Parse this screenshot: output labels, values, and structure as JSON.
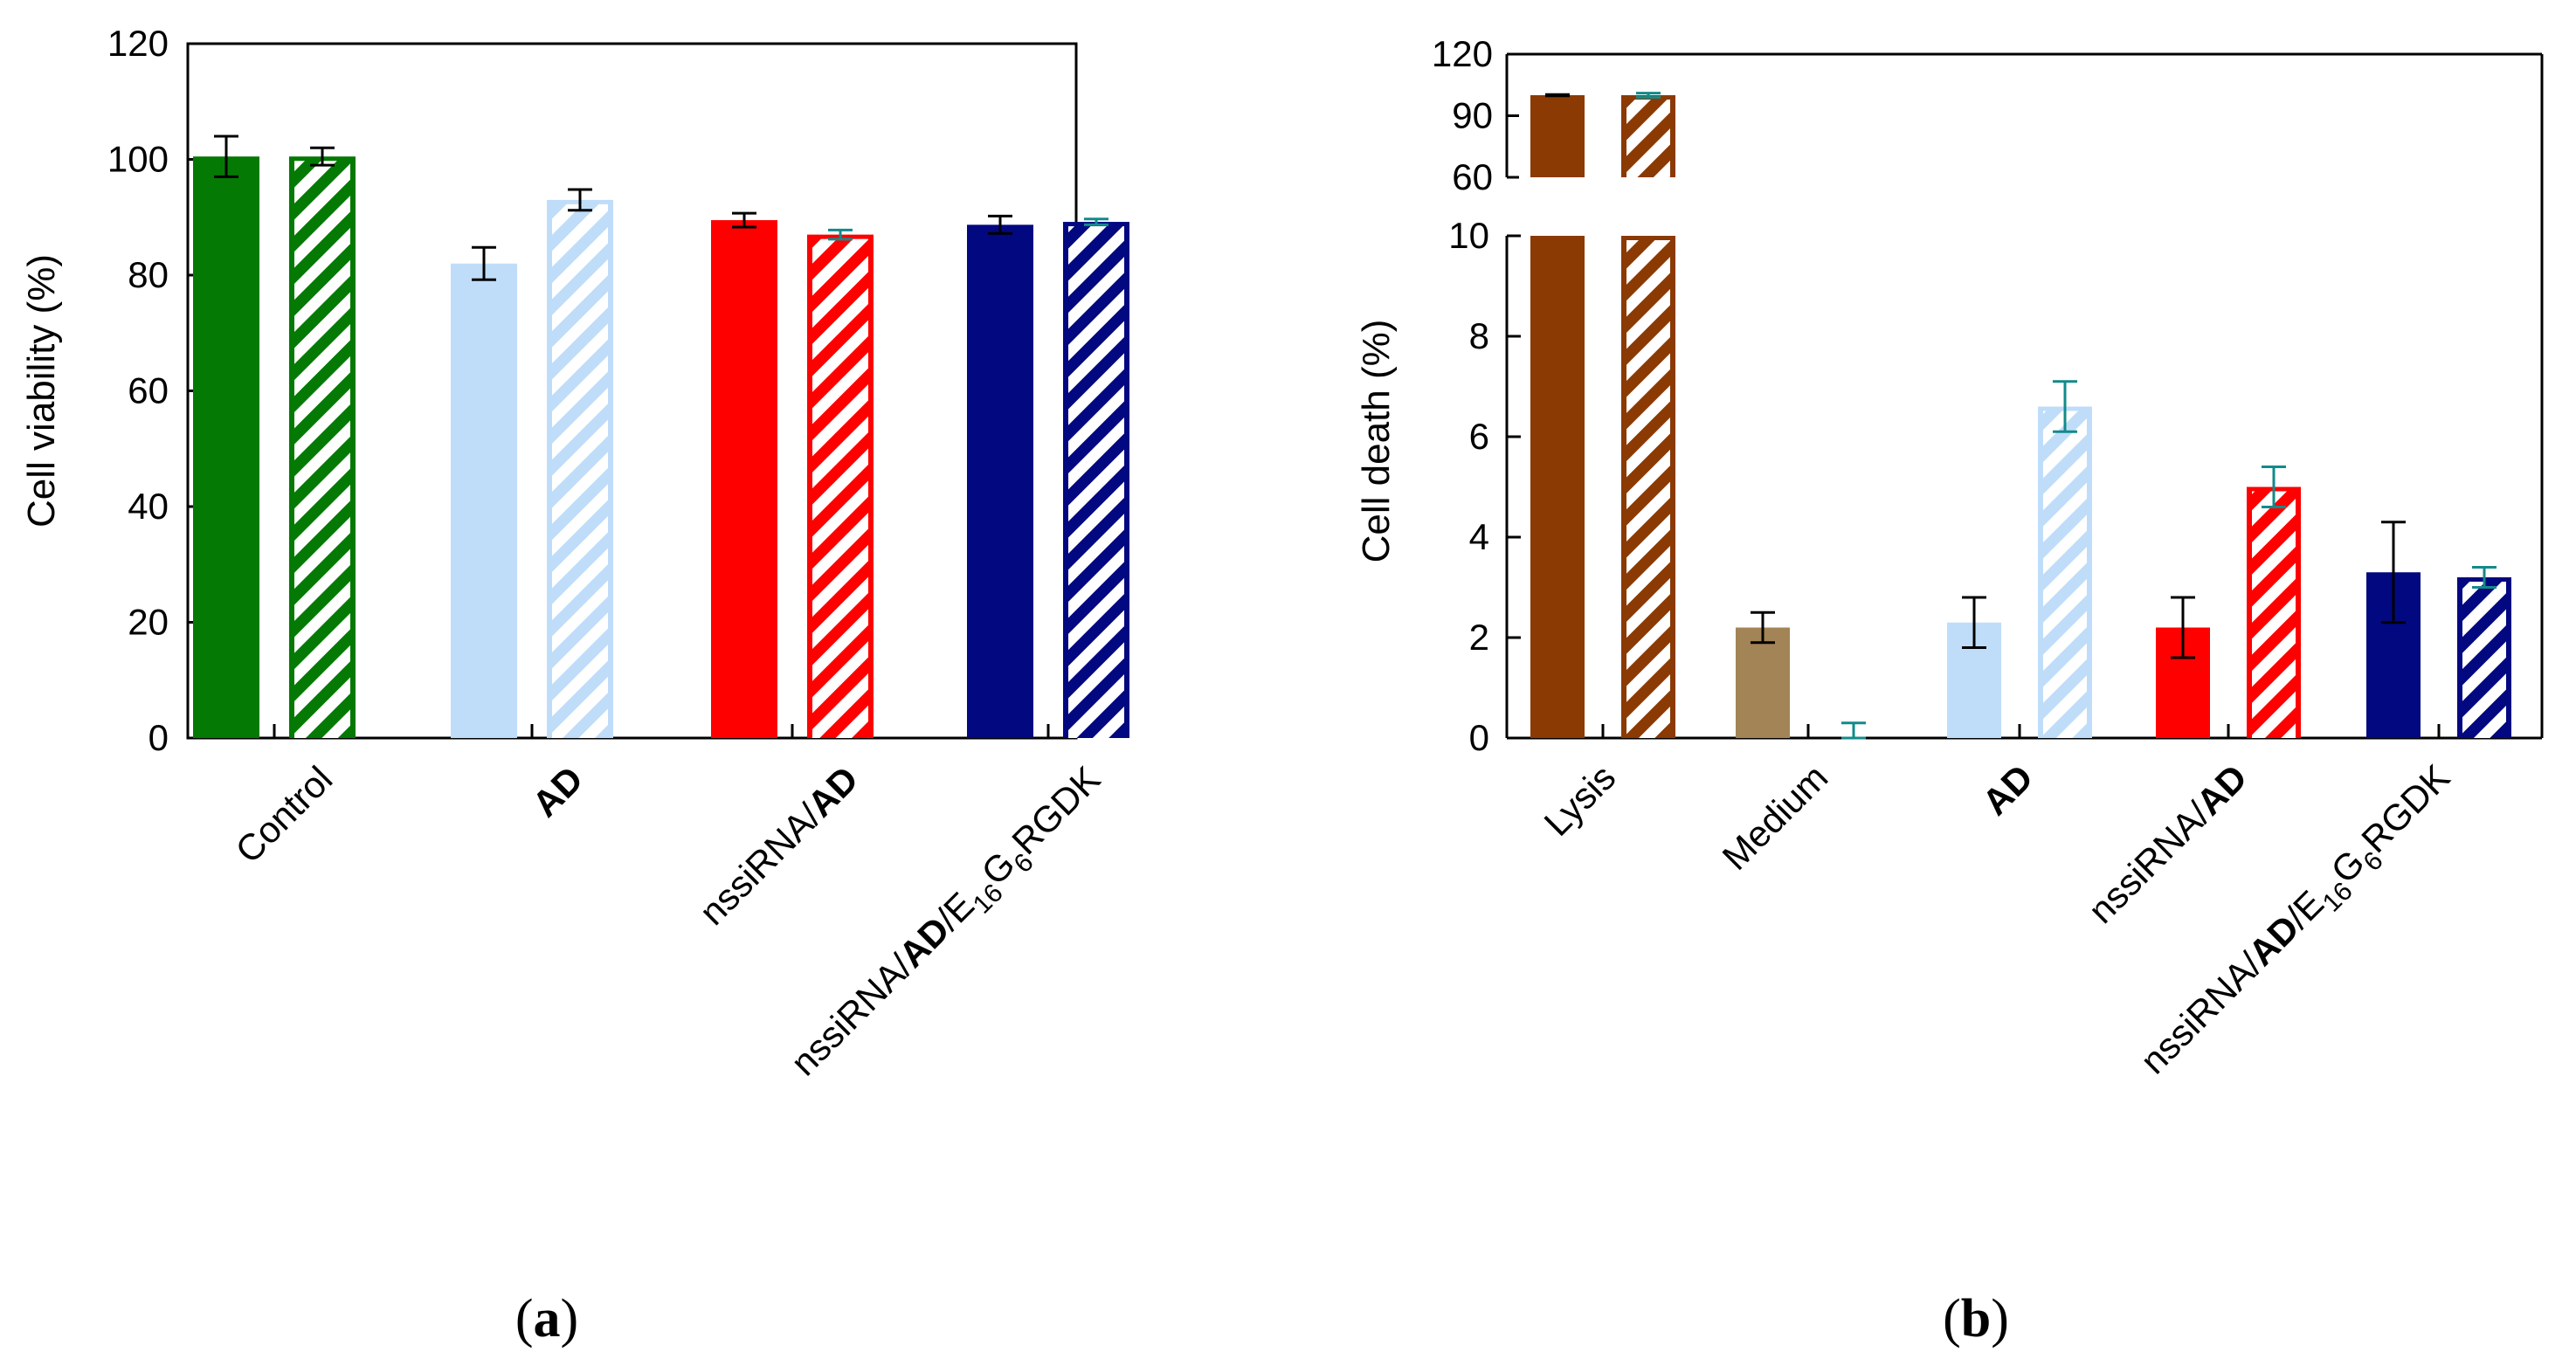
{
  "chart_data": [
    {
      "id": "a",
      "type": "bar",
      "panel_label_prefix": "(",
      "panel_label": "a",
      "panel_label_suffix": ")",
      "ylabel": "Cell viability (%)",
      "ylim": [
        0,
        120
      ],
      "yticks": [
        0,
        20,
        40,
        60,
        80,
        100,
        120
      ],
      "categories": [
        {
          "parts": [
            {
              "t": "Control"
            }
          ]
        },
        {
          "parts": [
            {
              "t": "AD",
              "bold": true
            }
          ]
        },
        {
          "parts": [
            {
              "t": "nssiRNA/"
            },
            {
              "t": "AD",
              "bold": true
            }
          ]
        },
        {
          "parts": [
            {
              "t": "nssiRNA/"
            },
            {
              "t": "AD",
              "bold": true
            },
            {
              "t": "/E"
            },
            {
              "t": "16",
              "sub": true
            },
            {
              "t": "G"
            },
            {
              "t": "6",
              "sub": true
            },
            {
              "t": "RGDK"
            }
          ]
        }
      ],
      "colors": [
        "#047a04",
        "#bfddf9",
        "#fe0000",
        "#020880"
      ],
      "series": [
        {
          "name": "solid",
          "pattern": "solid",
          "values": [
            100.5,
            82.0,
            89.5,
            88.7
          ],
          "errors": [
            3.5,
            2.8,
            1.2,
            1.5
          ]
        },
        {
          "name": "hatched",
          "pattern": "hatched",
          "values": [
            100.5,
            93.0,
            87.0,
            89.2
          ],
          "errors": [
            1.5,
            1.8,
            0.8,
            0.5
          ]
        }
      ]
    },
    {
      "id": "b",
      "type": "bar",
      "panel_label_prefix": "(",
      "panel_label": "b",
      "panel_label_suffix": ")",
      "ylabel": "Cell death (%)",
      "axis_break": true,
      "ylim_lower": [
        0,
        10
      ],
      "yticks_lower": [
        0,
        2,
        4,
        6,
        8,
        10
      ],
      "ylim_upper": [
        60,
        120
      ],
      "yticks_upper": [
        60,
        90,
        120
      ],
      "categories": [
        {
          "parts": [
            {
              "t": "Lysis"
            }
          ]
        },
        {
          "parts": [
            {
              "t": "Medium"
            }
          ]
        },
        {
          "parts": [
            {
              "t": "AD",
              "bold": true
            }
          ]
        },
        {
          "parts": [
            {
              "t": "nssiRNA/"
            },
            {
              "t": "AD",
              "bold": true
            }
          ]
        },
        {
          "parts": [
            {
              "t": "nssiRNA/"
            },
            {
              "t": "AD",
              "bold": true
            },
            {
              "t": "/E"
            },
            {
              "t": "16",
              "sub": true
            },
            {
              "t": "G"
            },
            {
              "t": "6",
              "sub": true
            },
            {
              "t": "RGDK"
            }
          ]
        }
      ],
      "colors": [
        "#8b3a03",
        "#a38456",
        "#bfddf9",
        "#fe0000",
        "#020880"
      ],
      "series": [
        {
          "name": "solid",
          "pattern": "solid",
          "values": [
            100,
            2.2,
            2.3,
            2.2,
            3.3
          ],
          "errors": [
            0.3,
            0.3,
            0.5,
            0.6,
            1.0
          ]
        },
        {
          "name": "hatched",
          "pattern": "hatched",
          "values": [
            100,
            0,
            6.6,
            5.0,
            3.2
          ],
          "errors": [
            1.0,
            0.3,
            0.5,
            0.4,
            0.2
          ]
        }
      ]
    }
  ]
}
